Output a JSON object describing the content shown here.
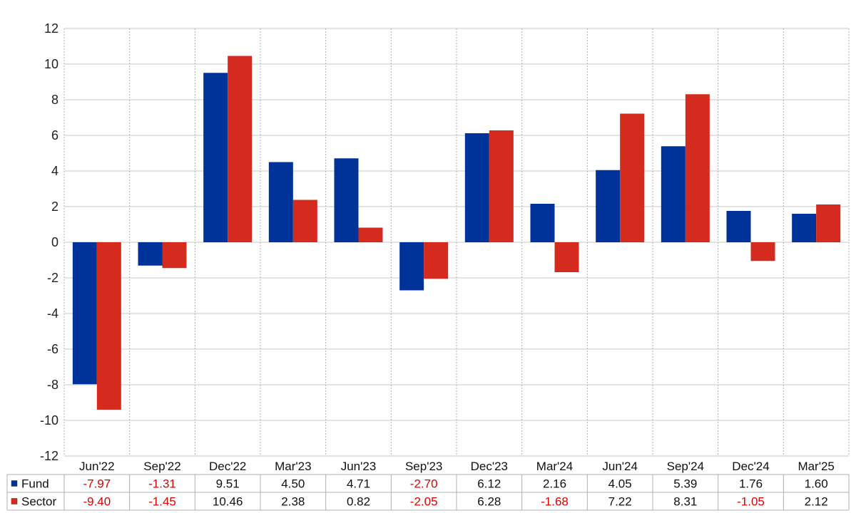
{
  "chart_data": {
    "type": "bar",
    "categories": [
      "Jun'22",
      "Sep'22",
      "Dec'22",
      "Mar'23",
      "Jun'23",
      "Sep'23",
      "Dec'23",
      "Mar'24",
      "Jun'24",
      "Sep'24",
      "Dec'24",
      "Mar'25"
    ],
    "series": [
      {
        "name": "Fund",
        "color": "#003399",
        "values": [
          -7.97,
          -1.31,
          9.51,
          4.5,
          4.71,
          -2.7,
          6.12,
          2.16,
          4.05,
          5.39,
          1.76,
          1.6
        ]
      },
      {
        "name": "Sector",
        "color": "#d52b1e",
        "values": [
          -9.4,
          -1.45,
          10.46,
          2.38,
          0.82,
          -2.05,
          6.28,
          -1.68,
          7.22,
          8.31,
          -1.05,
          2.12
        ]
      }
    ],
    "table_values": [
      [
        "-7.97",
        "-1.31",
        "9.51",
        "4.50",
        "4.71",
        "-2.70",
        "6.12",
        "2.16",
        "4.05",
        "5.39",
        "1.76",
        "1.60"
      ],
      [
        "-9.40",
        "-1.45",
        "10.46",
        "2.38",
        "0.82",
        "-2.05",
        "6.28",
        "-1.68",
        "7.22",
        "8.31",
        "-1.05",
        "2.12"
      ]
    ],
    "ylim": [
      -12,
      12
    ],
    "yticks": [
      12,
      10,
      8,
      6,
      4,
      2,
      0,
      -2,
      -4,
      -6,
      -8,
      -10,
      -12
    ],
    "grid": true,
    "legend_placement": "data-table-left",
    "negative_value_color": "#e00000"
  }
}
